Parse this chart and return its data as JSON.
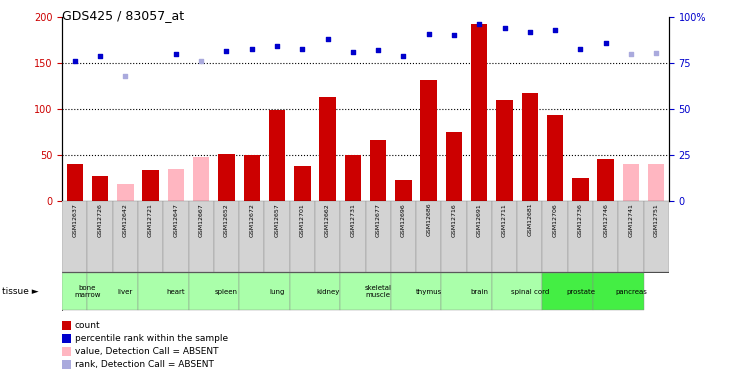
{
  "title": "GDS425 / 83057_at",
  "samples": [
    "GSM12637",
    "GSM12726",
    "GSM12642",
    "GSM12721",
    "GSM12647",
    "GSM12667",
    "GSM12652",
    "GSM12672",
    "GSM12657",
    "GSM12701",
    "GSM12662",
    "GSM12731",
    "GSM12677",
    "GSM12696",
    "GSM12686",
    "GSM12716",
    "GSM12691",
    "GSM12711",
    "GSM12681",
    "GSM12706",
    "GSM12736",
    "GSM12746",
    "GSM12741",
    "GSM12751"
  ],
  "bar_values": [
    40,
    27,
    18,
    33,
    34,
    47,
    51,
    50,
    99,
    38,
    113,
    50,
    66,
    22,
    131,
    75,
    192,
    110,
    117,
    93,
    25,
    45,
    40,
    40
  ],
  "bar_absent": [
    false,
    false,
    true,
    false,
    true,
    true,
    false,
    false,
    false,
    false,
    false,
    false,
    false,
    false,
    false,
    false,
    false,
    false,
    false,
    false,
    false,
    false,
    true,
    true
  ],
  "rank_values": [
    152,
    157,
    136,
    null,
    160,
    152,
    163,
    165,
    168,
    165,
    176,
    162,
    164,
    157,
    181,
    180,
    192,
    188,
    184,
    186,
    165,
    172,
    160,
    161
  ],
  "rank_absent": [
    false,
    false,
    true,
    true,
    false,
    true,
    false,
    false,
    false,
    false,
    false,
    false,
    false,
    false,
    false,
    false,
    false,
    false,
    false,
    false,
    false,
    false,
    true,
    true
  ],
  "tissues": [
    {
      "label": "bone\nmarrow",
      "start": 0,
      "end": 1,
      "color": "#aaffaa"
    },
    {
      "label": "liver",
      "start": 1,
      "end": 3,
      "color": "#aaffaa"
    },
    {
      "label": "heart",
      "start": 3,
      "end": 5,
      "color": "#aaffaa"
    },
    {
      "label": "spleen",
      "start": 5,
      "end": 7,
      "color": "#aaffaa"
    },
    {
      "label": "lung",
      "start": 7,
      "end": 9,
      "color": "#aaffaa"
    },
    {
      "label": "kidney",
      "start": 9,
      "end": 11,
      "color": "#aaffaa"
    },
    {
      "label": "skeletal\nmuscle",
      "start": 11,
      "end": 13,
      "color": "#aaffaa"
    },
    {
      "label": "thymus",
      "start": 13,
      "end": 15,
      "color": "#aaffaa"
    },
    {
      "label": "brain",
      "start": 15,
      "end": 17,
      "color": "#aaffaa"
    },
    {
      "label": "spinal cord",
      "start": 17,
      "end": 19,
      "color": "#aaffaa"
    },
    {
      "label": "prostate",
      "start": 19,
      "end": 21,
      "color": "#44ee44"
    },
    {
      "label": "pancreas",
      "start": 21,
      "end": 23,
      "color": "#44ee44"
    }
  ],
  "ylim_left": [
    0,
    200
  ],
  "ylim_right": [
    0,
    100
  ],
  "yticks_left": [
    0,
    50,
    100,
    150,
    200
  ],
  "yticks_right": [
    0,
    25,
    50,
    75,
    100
  ],
  "yticklabels_right": [
    "0",
    "25",
    "50",
    "75",
    "100%"
  ],
  "bar_color": "#cc0000",
  "bar_absent_color": "#ffb6c1",
  "rank_color": "#0000cc",
  "rank_absent_color": "#aaaadd",
  "dotted_levels": [
    50,
    100,
    150
  ],
  "background_color": "#ffffff",
  "left_tick_color": "#cc0000",
  "right_tick_color": "#0000cc"
}
